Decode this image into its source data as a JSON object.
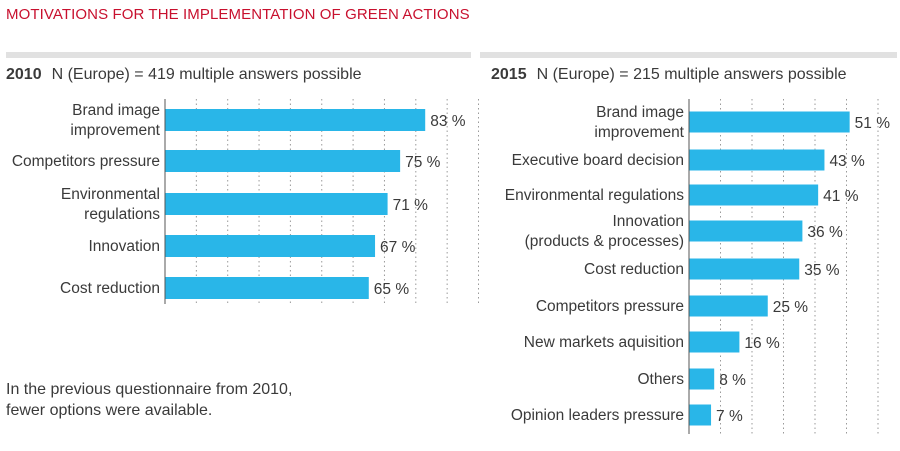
{
  "title": "MOTIVATIONS FOR THE IMPLEMENTATION OF GREEN ACTIONS",
  "panels": [
    {
      "year": "2010",
      "subtitle": "N (Europe) = 419  multiple answers possible"
    },
    {
      "year": "2015",
      "subtitle": "N (Europe) = 215  multiple answers possible"
    }
  ],
  "note": {
    "line1": "In the previous questionnaire from 2010,",
    "line2": "fewer options were available."
  },
  "colors": {
    "title": "#c8102e",
    "bar": "#29b6e8",
    "rule": "#e1e1e1"
  },
  "chart_data": [
    {
      "type": "bar",
      "orientation": "horizontal",
      "title": "2010",
      "categories": [
        [
          "Brand image",
          "improvement"
        ],
        [
          "Competitors pressure"
        ],
        [
          "Environmental",
          "regulations"
        ],
        [
          "Innovation"
        ],
        [
          "Cost reduction"
        ]
      ],
      "values": [
        83,
        75,
        71,
        67,
        65
      ],
      "value_labels": [
        "83 %",
        "75 %",
        "71 %",
        "67 %",
        "65 %"
      ],
      "xlim": [
        0,
        100
      ],
      "grid": true
    },
    {
      "type": "bar",
      "orientation": "horizontal",
      "title": "2015",
      "categories": [
        [
          "Brand image",
          "improvement"
        ],
        [
          "Executive board decision"
        ],
        [
          "Environmental regulations"
        ],
        [
          "Innovation",
          "(products & processes)"
        ],
        [
          "Cost reduction"
        ],
        [
          "Competitors pressure"
        ],
        [
          "New markets aquisition"
        ],
        [
          "Others"
        ],
        [
          "Opinion leaders pressure"
        ]
      ],
      "values": [
        51,
        43,
        41,
        36,
        35,
        25,
        16,
        8,
        7
      ],
      "value_labels": [
        "51 %",
        "43 %",
        "41 %",
        "36 %",
        "35 %",
        "25 %",
        "16 %",
        "8 %",
        "7 %"
      ],
      "xlim": [
        0,
        100
      ],
      "grid": true
    }
  ]
}
